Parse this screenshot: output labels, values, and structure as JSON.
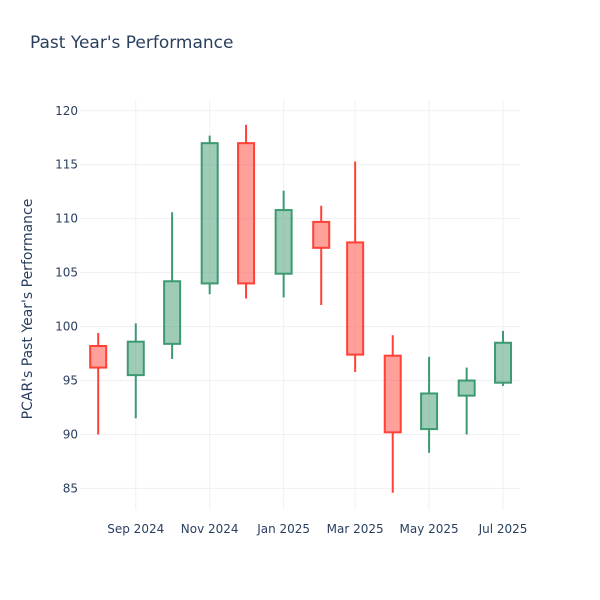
{
  "chart_data": {
    "type": "candlestick",
    "title": "Past Year's Performance",
    "xlabel": "",
    "ylabel": "PCAR's Past Year's Performance",
    "ylim": [
      83.0,
      121.0
    ],
    "y_ticks": [
      85,
      90,
      95,
      100,
      105,
      110,
      115,
      120
    ],
    "x_ticks": [
      {
        "label": "Sep 2024",
        "x": "2024-09-01"
      },
      {
        "label": "Nov 2024",
        "x": "2024-11-01"
      },
      {
        "label": "Jan 2025",
        "x": "2025-01-01"
      },
      {
        "label": "Mar 2025",
        "x": "2025-03-01"
      },
      {
        "label": "May 2025",
        "x": "2025-05-01"
      },
      {
        "label": "Jul 2025",
        "x": "2025-07-01"
      }
    ],
    "xlim": [
      "2024-07-17",
      "2025-07-15"
    ],
    "grid": true,
    "colors": {
      "increasing": "#3d9970",
      "decreasing": "#ff4136",
      "grid": "#eef0f4",
      "text": "#2a3f5f"
    },
    "candles": [
      {
        "date": "2024-08-01",
        "open": 98.2,
        "high": 99.4,
        "low": 90.0,
        "close": 96.2
      },
      {
        "date": "2024-09-01",
        "open": 95.5,
        "high": 100.3,
        "low": 91.5,
        "close": 98.6
      },
      {
        "date": "2024-10-01",
        "open": 98.4,
        "high": 110.6,
        "low": 97.0,
        "close": 104.2
      },
      {
        "date": "2024-11-01",
        "open": 104.0,
        "high": 117.7,
        "low": 103.0,
        "close": 117.0
      },
      {
        "date": "2024-12-01",
        "open": 117.0,
        "high": 118.7,
        "low": 102.6,
        "close": 104.0
      },
      {
        "date": "2025-01-01",
        "open": 104.9,
        "high": 112.6,
        "low": 102.7,
        "close": 110.8
      },
      {
        "date": "2025-02-01",
        "open": 109.7,
        "high": 111.2,
        "low": 102.0,
        "close": 107.3
      },
      {
        "date": "2025-03-01",
        "open": 107.8,
        "high": 115.3,
        "low": 95.8,
        "close": 97.4
      },
      {
        "date": "2025-04-01",
        "open": 97.3,
        "high": 99.2,
        "low": 84.6,
        "close": 90.2
      },
      {
        "date": "2025-05-01",
        "open": 90.5,
        "high": 97.2,
        "low": 88.3,
        "close": 93.8
      },
      {
        "date": "2025-06-01",
        "open": 93.6,
        "high": 96.2,
        "low": 90.0,
        "close": 95.0
      },
      {
        "date": "2025-07-01",
        "open": 94.8,
        "high": 99.6,
        "low": 94.5,
        "close": 98.5
      }
    ]
  }
}
